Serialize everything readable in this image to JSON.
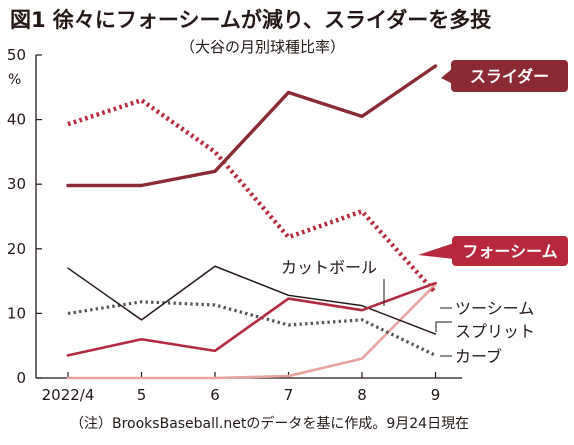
{
  "figure": {
    "title": "図1 徐々にフォーシームが減り、スライダーを多投",
    "subtitle": "（大谷の月別球種比率）",
    "note": "（注）BrooksBaseball.netのデータを基に作成。9月24日現在"
  },
  "colors": {
    "slider": "#8c2a34",
    "fourseam": "#b8283d",
    "cutter": "#b22a42",
    "twoseam": "#231815",
    "split": "#555555",
    "curve": "#e8a39f",
    "axis": "#231815"
  },
  "chart_data": {
    "type": "line",
    "categories": [
      "2022/4",
      "5",
      "6",
      "7",
      "8",
      "9"
    ],
    "ylim": [
      0,
      50
    ],
    "yticks": [
      0,
      10,
      20,
      30,
      40,
      50
    ],
    "yunit": "%",
    "series": [
      {
        "name": "スライダー",
        "values": [
          29.8,
          29.8,
          32.0,
          44.2,
          40.5,
          48.3
        ],
        "style": "solid-thick",
        "color_key": "slider"
      },
      {
        "name": "フォーシーム",
        "values": [
          39.3,
          43.0,
          35.0,
          21.8,
          25.8,
          13.2
        ],
        "style": "dotted-thick",
        "color_key": "fourseam"
      },
      {
        "name": "カットボール",
        "values": [
          3.5,
          6.0,
          4.2,
          12.3,
          10.5,
          14.7
        ],
        "style": "solid",
        "color_key": "cutter"
      },
      {
        "name": "ツーシーム",
        "values": [
          17.0,
          9.0,
          17.3,
          12.8,
          11.2,
          6.8
        ],
        "style": "solid-thin",
        "color_key": "twoseam"
      },
      {
        "name": "スプリット",
        "values": [
          10.0,
          11.8,
          11.3,
          8.2,
          9.0,
          3.5
        ],
        "style": "dotted",
        "color_key": "split"
      },
      {
        "name": "カーブ",
        "values": [
          0.0,
          0.0,
          0.0,
          0.3,
          3.0,
          14.5
        ],
        "style": "solid",
        "color_key": "curve"
      }
    ],
    "callouts": {
      "slider": "スライダー",
      "fourseam": "フォーシーム"
    },
    "labels": {
      "cutter": "カットボール",
      "twoseam": "ツーシーム",
      "split": "スプリット",
      "curve": "カーブ"
    }
  }
}
